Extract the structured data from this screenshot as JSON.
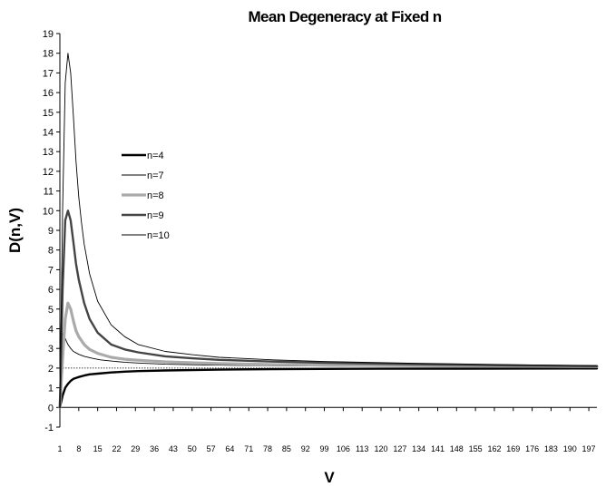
{
  "chart_data": {
    "type": "line",
    "title": "Mean Degeneracy at Fixed n",
    "xlabel": "V",
    "ylabel": "D(n,V)",
    "xlim": [
      1,
      200
    ],
    "ylim": [
      -1,
      19
    ],
    "yticks": [
      -1,
      0,
      1,
      2,
      3,
      4,
      5,
      6,
      7,
      8,
      9,
      10,
      11,
      12,
      13,
      14,
      15,
      16,
      17,
      18,
      19
    ],
    "xticks": [
      1,
      8,
      15,
      22,
      29,
      36,
      43,
      50,
      57,
      64,
      71,
      78,
      85,
      92,
      99,
      106,
      113,
      120,
      127,
      134,
      141,
      148,
      155,
      162,
      169,
      176,
      183,
      190,
      197
    ],
    "grid": false,
    "legend_position": "left-center",
    "reference_line": {
      "y": 2,
      "style": "dotted"
    },
    "series": [
      {
        "name": "n=4",
        "color": "#000000",
        "width": 2.4,
        "x": [
          1,
          2,
          3,
          4,
          5,
          6,
          7,
          8,
          10,
          12,
          15,
          20,
          25,
          30,
          40,
          60,
          80,
          120,
          200
        ],
        "y": [
          0,
          0.6,
          1.0,
          1.2,
          1.35,
          1.45,
          1.5,
          1.55,
          1.62,
          1.68,
          1.72,
          1.78,
          1.82,
          1.85,
          1.88,
          1.92,
          1.95,
          1.97,
          1.98
        ]
      },
      {
        "name": "n=7",
        "color": "#000000",
        "width": 0.9,
        "x": [
          1,
          2,
          3,
          4,
          5,
          6,
          8,
          10,
          13,
          16,
          20,
          25,
          30,
          40,
          50,
          60,
          80,
          100,
          140,
          200
        ],
        "y": [
          3.8,
          3.75,
          3.5,
          3.2,
          3.0,
          2.85,
          2.7,
          2.6,
          2.5,
          2.42,
          2.36,
          2.3,
          2.26,
          2.2,
          2.17,
          2.15,
          2.12,
          2.1,
          2.08,
          2.05
        ]
      },
      {
        "name": "n=8",
        "color": "#aaaaaa",
        "width": 3.2,
        "x": [
          1,
          2,
          3,
          4,
          5,
          6,
          7,
          8,
          10,
          12,
          15,
          20,
          25,
          30,
          40,
          50,
          60,
          80,
          110,
          150,
          200
        ],
        "y": [
          0,
          2.5,
          4.5,
          5.3,
          5.0,
          4.4,
          3.9,
          3.6,
          3.2,
          2.95,
          2.75,
          2.55,
          2.45,
          2.4,
          2.32,
          2.27,
          2.23,
          2.18,
          2.14,
          2.11,
          2.08
        ]
      },
      {
        "name": "n=9",
        "color": "#444444",
        "width": 2.4,
        "x": [
          1,
          2,
          3,
          4,
          5,
          6,
          7,
          8,
          10,
          12,
          15,
          20,
          25,
          30,
          40,
          50,
          60,
          80,
          100,
          130,
          170,
          200
        ],
        "y": [
          0,
          6,
          9.5,
          10,
          9.5,
          8.4,
          7.3,
          6.5,
          5.3,
          4.5,
          3.8,
          3.2,
          2.95,
          2.8,
          2.6,
          2.5,
          2.42,
          2.33,
          2.27,
          2.2,
          2.13,
          2.1
        ]
      },
      {
        "name": "n=10",
        "color": "#000000",
        "width": 0.9,
        "x": [
          1,
          2,
          3,
          4,
          5,
          6,
          7,
          8,
          9,
          10,
          12,
          15,
          20,
          25,
          30,
          40,
          50,
          60,
          80,
          100,
          130,
          170,
          200
        ],
        "y": [
          0,
          10,
          16.5,
          18,
          17,
          14.8,
          12.5,
          10.7,
          9.4,
          8.3,
          6.8,
          5.4,
          4.2,
          3.6,
          3.2,
          2.85,
          2.68,
          2.55,
          2.42,
          2.33,
          2.25,
          2.17,
          2.12
        ]
      }
    ]
  }
}
